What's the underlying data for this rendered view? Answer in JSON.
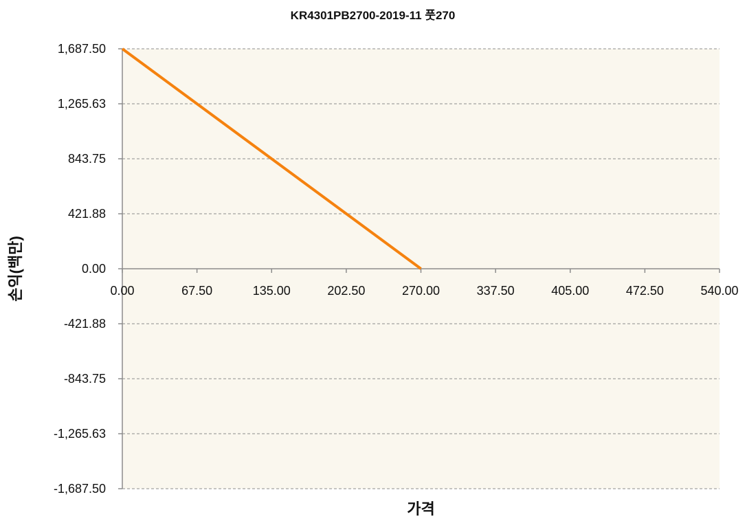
{
  "chart_data": {
    "type": "line",
    "title": "KR4301PB2700-2019-11 풋270",
    "xlabel": "가격",
    "ylabel": "손익(백만)",
    "xlim": [
      0,
      540
    ],
    "ylim": [
      -1687.5,
      1687.5
    ],
    "x_ticks": [
      "0.00",
      "67.50",
      "135.00",
      "202.50",
      "270.00",
      "337.50",
      "405.00",
      "472.50",
      "540.00"
    ],
    "y_ticks": [
      "1,687.50",
      "1,265.63",
      "843.75",
      "421.88",
      "0.00",
      "-421.88",
      "-843.75",
      "-1,265.63",
      "-1,687.50"
    ],
    "grid": true,
    "series": [
      {
        "x": [
          0,
          270
        ],
        "y": [
          1687.5,
          0
        ],
        "color": "#f5820f"
      }
    ],
    "colors": {
      "plot_bg": "#faf7ee",
      "grid": "#8c8c8c",
      "axis": "#8c8c8c"
    }
  }
}
